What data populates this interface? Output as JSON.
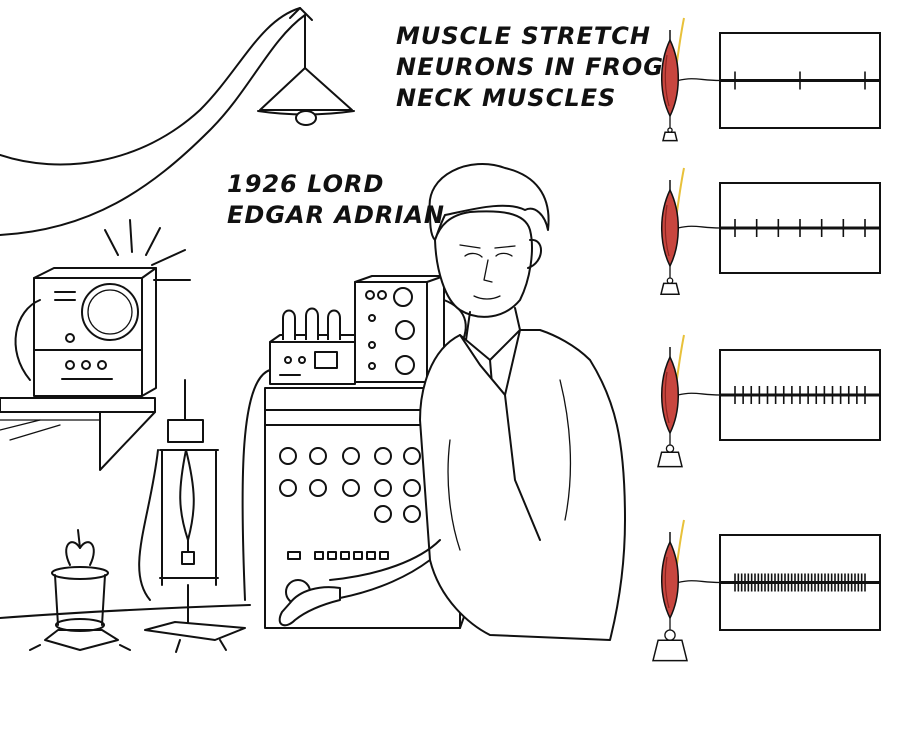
{
  "title": {
    "lines": [
      "Muscle Stretch",
      "Neurons in Frog",
      "Neck Muscles"
    ]
  },
  "person_label": {
    "lines": [
      "1926 Lord",
      "Edgar Adrian"
    ]
  },
  "colors": {
    "ink": "#111111",
    "muscle": "#c8463f",
    "muscle_dark": "#8a2420",
    "nerve": "#e8c13a",
    "weight": "#ffffff"
  },
  "recordings": [
    {
      "stimulus": "light weight",
      "spike_count": 3
    },
    {
      "stimulus": "medium weight",
      "spike_count": 7
    },
    {
      "stimulus": "heavy weight",
      "spike_count": 17
    },
    {
      "stimulus": "heaviest weight",
      "spike_count": 40
    }
  ]
}
